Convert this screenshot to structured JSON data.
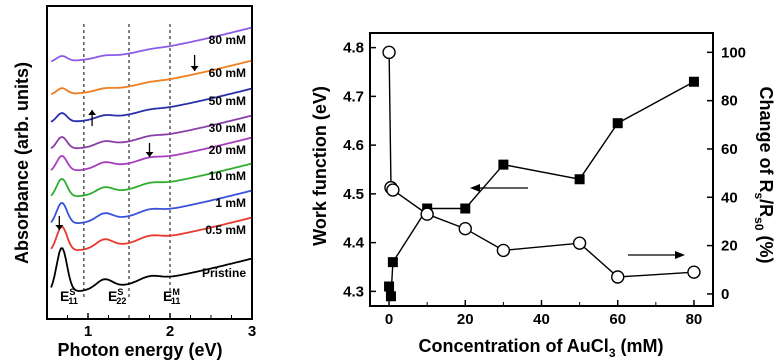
{
  "chart_data": [
    {
      "type": "line",
      "xlabel": "Photon energy (eV)",
      "ylabel": "Absorbance (arb. units)",
      "xlim": [
        0.5,
        3
      ],
      "xticks": [
        "1",
        "2",
        "3"
      ],
      "yticks": "none",
      "reference_lines_x": [
        0.95,
        1.5,
        2.0
      ],
      "annotations": [
        {
          "text": "E",
          "sup": "S",
          "sub": "11"
        },
        {
          "text": "E",
          "sup": "S",
          "sub": "22"
        },
        {
          "text": "E",
          "sup": "M",
          "sub": "11"
        }
      ],
      "series": [
        {
          "name": "Pristine",
          "color": "#000000",
          "offset": 0.0
        },
        {
          "name": "0.5 mM",
          "color": "#e8382f",
          "offset": 1.0
        },
        {
          "name": "1 mM",
          "color": "#3a52d9",
          "offset": 2.0
        },
        {
          "name": "10 mM",
          "color": "#2fae2f",
          "offset": 3.0
        },
        {
          "name": "20 mM",
          "color": "#a63fbf",
          "offset": 4.0
        },
        {
          "name": "30 mM",
          "color": "#8a3fa8",
          "offset": 5.0
        },
        {
          "name": "50 mM",
          "color": "#2a2fa8",
          "offset": 6.0
        },
        {
          "name": "60 mM",
          "color": "#f07d1e",
          "offset": 7.0
        },
        {
          "name": "80 mM",
          "color": "#8a5ce8",
          "offset": 8.0
        }
      ]
    },
    {
      "type": "scatter",
      "xlabel_main": "Concentration of AuCl",
      "xlabel_sub": "3",
      "xlabel_end": " (mM)",
      "ylabel_left": "Work function (eV)",
      "ylabel_right_parts": [
        "Change of R",
        "s",
        "/R",
        "s0",
        " (%)"
      ],
      "xlim": [
        -5,
        85
      ],
      "ylim_left": [
        4.27,
        4.83
      ],
      "ylim_right": [
        -5,
        108
      ],
      "xticks": [
        0,
        20,
        40,
        60,
        80
      ],
      "yticks_left": [
        4.3,
        4.4,
        4.5,
        4.6,
        4.7,
        4.8
      ],
      "yticks_right": [
        0,
        20,
        40,
        60,
        80,
        100
      ],
      "series": [
        {
          "name": "Work function",
          "axis": "left",
          "marker": "filled-square",
          "x": [
            0,
            0.5,
            1,
            10,
            20,
            30,
            50,
            60,
            80
          ],
          "y": [
            4.31,
            4.29,
            4.36,
            4.47,
            4.47,
            4.56,
            4.53,
            4.645,
            4.73
          ]
        },
        {
          "name": "Change of Rs/Rs0",
          "axis": "right",
          "marker": "open-circle",
          "x": [
            0,
            0.5,
            1,
            10,
            20,
            30,
            50,
            60,
            80
          ],
          "y": [
            100,
            44,
            43,
            33,
            27,
            18,
            21,
            7,
            9
          ]
        }
      ]
    }
  ]
}
